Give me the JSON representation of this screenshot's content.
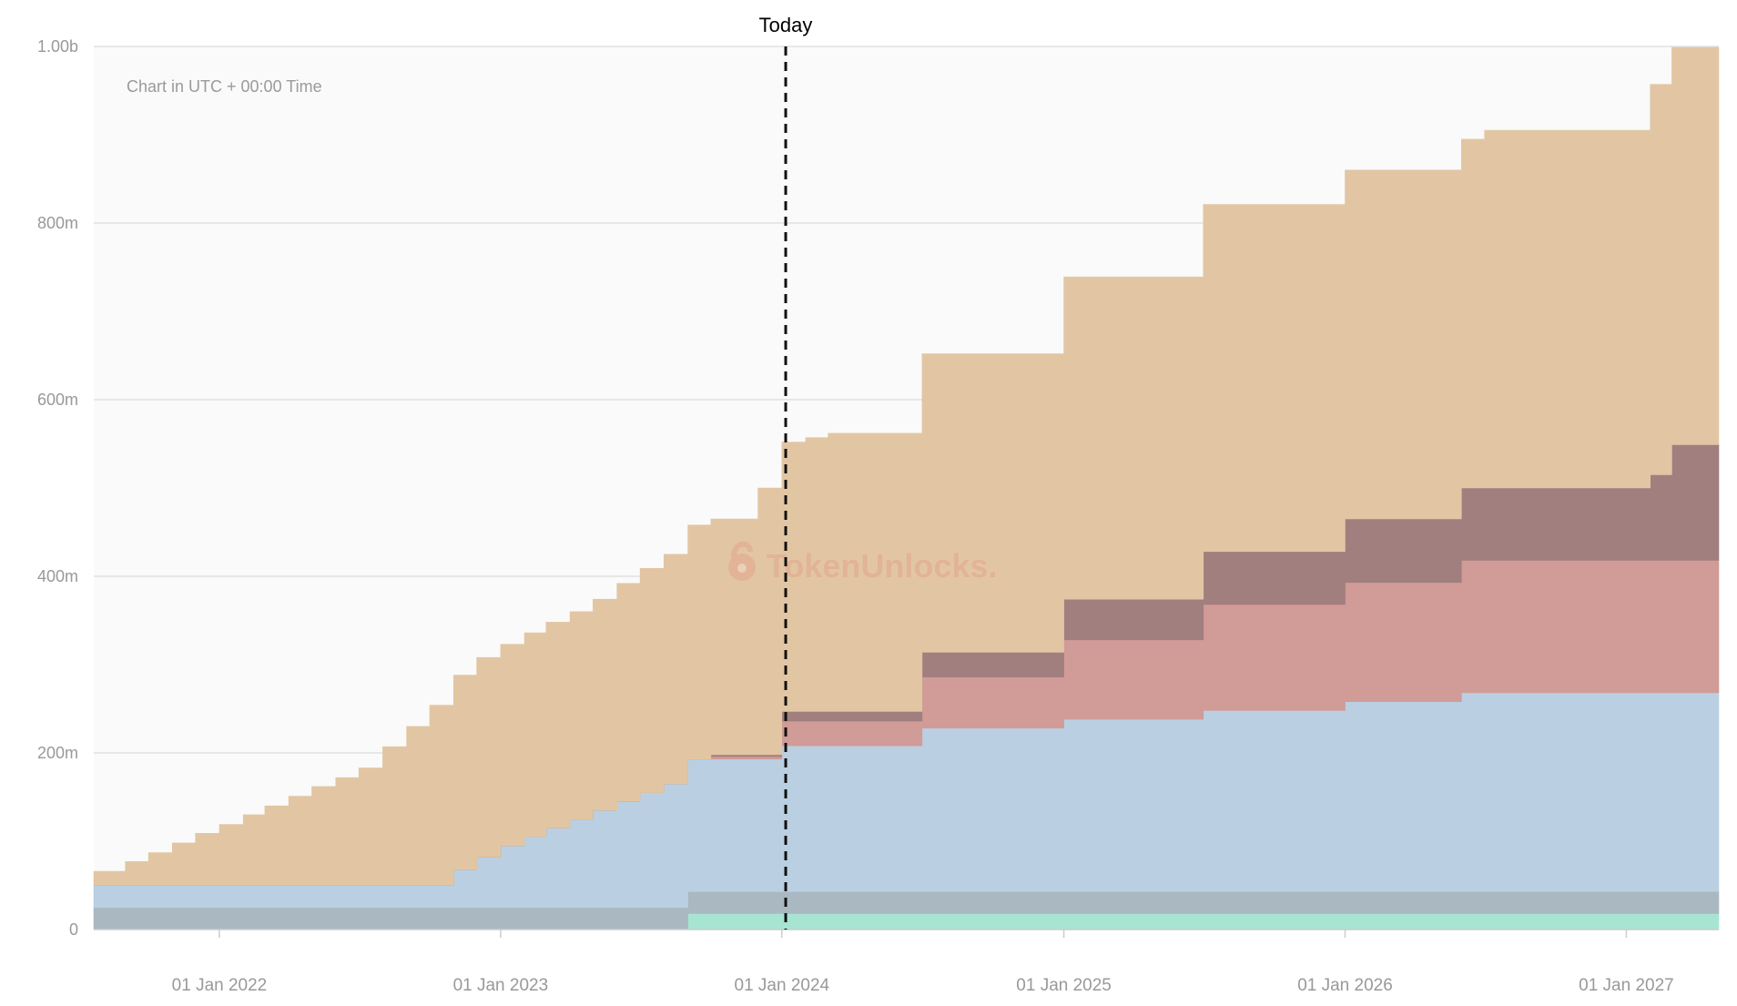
{
  "chart_data": {
    "type": "area",
    "stacked": true,
    "step": true,
    "note": "Chart in UTC + 00:00 Time",
    "today_label": "Today",
    "today_date": "2024-01-06",
    "watermark": "TokenUnlocks.",
    "x_ticks": [
      "01 Jan 2022",
      "01 Jan 2023",
      "01 Jan 2024",
      "01 Jan 2025",
      "01 Jan 2026",
      "01 Jan 2027"
    ],
    "y_ticks": [
      "0",
      "200m",
      "400m",
      "600m",
      "800m",
      "1.00b"
    ],
    "xlim": [
      "2021-07-22",
      "2027-05-01"
    ],
    "ylim": [
      0,
      1000000000
    ],
    "grid": true,
    "colors": {
      "plot_background": "#fafafa",
      "grid": "#dcdcdc",
      "axis": "#cccccc",
      "tick_label": "#999999",
      "note": "#9a9a9a",
      "today_line": "#111111",
      "watermark": "#e2a58f"
    },
    "series": [
      {
        "color": "#a8e4d2",
        "x": [
          "2021-07-22",
          "2022-10-01",
          "2023-09-01",
          "2027-05-01"
        ],
        "y": [
          0,
          0,
          18000000,
          18000000
        ]
      },
      {
        "color": "#aab8c2",
        "x": [
          "2021-07-22",
          "2022-10-01",
          "2023-09-01",
          "2027-05-01"
        ],
        "y": [
          25000000,
          25000000,
          25000000,
          25000000
        ]
      },
      {
        "color": "#bad0e2",
        "x": [
          "2021-07-22",
          "2022-10-01",
          "2022-11-01",
          "2022-12-01",
          "2023-01-01",
          "2023-02-01",
          "2023-03-01",
          "2023-04-01",
          "2023-05-01",
          "2023-06-01",
          "2023-07-01",
          "2023-08-01",
          "2023-09-01",
          "2024-01-01",
          "2024-07-01",
          "2025-01-01",
          "2025-07-01",
          "2026-01-01",
          "2026-06-01",
          "2027-05-01"
        ],
        "y": [
          25000000,
          25000000,
          43000000,
          57000000,
          70000000,
          80000000,
          90000000,
          100000000,
          110000000,
          120000000,
          130000000,
          140000000,
          150000000,
          165000000,
          185000000,
          195000000,
          205000000,
          215000000,
          225000000,
          225000000
        ]
      },
      {
        "color": "#d19b98",
        "x": [
          "2021-07-22",
          "2023-10-01",
          "2024-01-01",
          "2024-07-01",
          "2025-01-01",
          "2025-07-01",
          "2026-01-01",
          "2026-06-01",
          "2027-05-01"
        ],
        "y": [
          0,
          3000000,
          28000000,
          58000000,
          90000000,
          120000000,
          135000000,
          150000000,
          150000000
        ]
      },
      {
        "color": "#a07f7e",
        "x": [
          "2021-07-22",
          "2023-10-01",
          "2024-01-01",
          "2024-07-01",
          "2025-01-01",
          "2025-07-01",
          "2026-01-01",
          "2026-06-01",
          "2027-02-01",
          "2027-03-01",
          "2027-05-01"
        ],
        "y": [
          0,
          2000000,
          11000000,
          28000000,
          46000000,
          60000000,
          72000000,
          82000000,
          97000000,
          131000000,
          131000000
        ]
      },
      {
        "color": "#e2c6a3",
        "x": [
          "2021-07-22",
          "2021-09-01",
          "2021-10-01",
          "2021-11-01",
          "2021-12-01",
          "2022-01-01",
          "2022-02-01",
          "2022-03-01",
          "2022-04-01",
          "2022-05-01",
          "2022-06-01",
          "2022-07-01",
          "2022-08-01",
          "2022-09-01",
          "2022-10-01",
          "2022-11-01",
          "2022-12-01",
          "2023-01-01",
          "2023-02-01",
          "2023-03-01",
          "2023-04-01",
          "2023-05-01",
          "2023-06-01",
          "2023-07-01",
          "2023-08-01",
          "2023-09-01",
          "2023-10-01",
          "2023-11-01",
          "2023-12-01",
          "2024-01-01",
          "2024-02-01",
          "2024-03-01",
          "2024-07-01",
          "2025-01-01",
          "2025-07-01",
          "2026-01-01",
          "2026-07-01",
          "2027-02-01",
          "2027-03-01",
          "2027-05-01"
        ],
        "y": [
          16000000,
          27000000,
          37000000,
          48000000,
          59000000,
          69000000,
          80000000,
          90000000,
          101000000,
          112000000,
          122000000,
          133000000,
          157000000,
          180000000,
          204000000,
          220000000,
          226000000,
          228000000,
          231000000,
          233000000,
          235000000,
          239000000,
          247000000,
          254000000,
          260000000,
          265000000,
          267000000,
          267000000,
          302000000,
          305000000,
          310000000,
          315000000,
          338000000,
          365000000,
          393000000,
          395000000,
          405000000,
          442000000,
          450000000,
          450000000
        ]
      }
    ]
  }
}
